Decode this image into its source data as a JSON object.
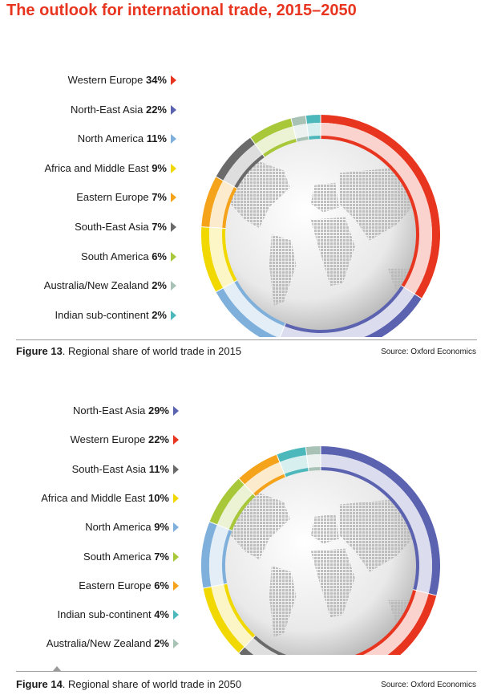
{
  "title": "The outlook for international trade, 2015–2050",
  "colors": {
    "title": "#e8351f",
    "Western Europe": "#e8351f",
    "North-East Asia": "#5b62b0",
    "North America": "#7fb0dc",
    "Africa and Middle East": "#f0d800",
    "Eastern Europe": "#f5a31a",
    "South-East Asia": "#6a6a6a",
    "South America": "#a8c83a",
    "Australia/New Zealand": "#a9c2b6",
    "Indian sub-continent": "#4db8bb"
  },
  "figures": [
    {
      "figure_label": "Figure 13",
      "caption": ". Regional share of world trade in 2015",
      "source": "Source: Oxford Economics",
      "legend": [
        {
          "label": "Western Europe",
          "value": "34%"
        },
        {
          "label": "North-East Asia",
          "value": "22%"
        },
        {
          "label": "North America",
          "value": "11%"
        },
        {
          "label": "Africa and Middle East",
          "value": "9%"
        },
        {
          "label": "Eastern Europe",
          "value": "7%"
        },
        {
          "label": "South-East Asia",
          "value": "7%"
        },
        {
          "label": "South America",
          "value": "6%"
        },
        {
          "label": "Australia/New Zealand",
          "value": "2%"
        },
        {
          "label": "Indian sub-continent",
          "value": "2%"
        }
      ]
    },
    {
      "figure_label": "Figure 14",
      "caption": ". Regional share of world trade in 2050",
      "source": "Source: Oxford Economics",
      "legend": [
        {
          "label": "North-East Asia",
          "value": "29%"
        },
        {
          "label": "Western Europe",
          "value": "22%"
        },
        {
          "label": "South-East Asia",
          "value": "11%"
        },
        {
          "label": "Africa and Middle East",
          "value": "10%"
        },
        {
          "label": "North America",
          "value": "9%"
        },
        {
          "label": "South America",
          "value": "7%"
        },
        {
          "label": "Eastern Europe",
          "value": "6%"
        },
        {
          "label": "Indian sub-continent",
          "value": "4%"
        },
        {
          "label": "Australia/New Zealand",
          "value": "2%"
        }
      ]
    }
  ],
  "chart_data": [
    {
      "type": "pie",
      "title": "Regional share of world trade in 2015",
      "categories": [
        "Western Europe",
        "North-East Asia",
        "North America",
        "Africa and Middle East",
        "Eastern Europe",
        "South-East Asia",
        "South America",
        "Australia/New Zealand",
        "Indian sub-continent"
      ],
      "values": [
        34,
        22,
        11,
        9,
        7,
        7,
        6,
        2,
        2
      ],
      "unit": "%",
      "legend_position": "left",
      "style": "donut"
    },
    {
      "type": "pie",
      "title": "Regional share of world trade in 2050",
      "categories": [
        "North-East Asia",
        "Western Europe",
        "South-East Asia",
        "Africa and Middle East",
        "North America",
        "South America",
        "Eastern Europe",
        "Indian sub-continent",
        "Australia/New Zealand"
      ],
      "values": [
        29,
        22,
        11,
        10,
        9,
        7,
        6,
        4,
        2
      ],
      "unit": "%",
      "legend_position": "left",
      "style": "donut"
    }
  ]
}
